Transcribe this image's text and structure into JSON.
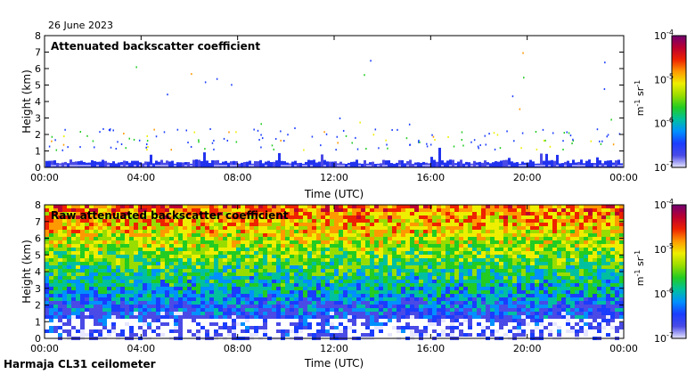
{
  "header": {
    "date": "26 June 2023"
  },
  "footer": {
    "instrument": "Harmaja CL31 ceilometer"
  },
  "colorbar_colors": [
    "#e6e6ff",
    "#4a4ae6",
    "#1a3cff",
    "#0090ff",
    "#00c0a0",
    "#22cc22",
    "#99dd00",
    "#eeee00",
    "#ff9900",
    "#ee2200",
    "#bb0030",
    "#700070"
  ],
  "chart_data": [
    {
      "type": "heatmap",
      "title": "Attenuated backscatter coefficient",
      "xlabel": "Time (UTC)",
      "ylabel": "Height (km)",
      "xticks": [
        "00:00",
        "04:00",
        "08:00",
        "12:00",
        "16:00",
        "20:00",
        "00:00"
      ],
      "yticks": [
        "0",
        "1",
        "2",
        "3",
        "4",
        "5",
        "6",
        "7",
        "8"
      ],
      "ylim": [
        0,
        8
      ],
      "colorbar": {
        "label": "m-1 sr-1",
        "ticks": [
          "10^-7",
          "10^-6",
          "10^-5",
          "10^-4"
        ],
        "range": [
          1e-07,
          0.0001
        ],
        "scale": "log"
      }
    },
    {
      "type": "heatmap",
      "title": "Raw attenuated backscatter coefficient",
      "xlabel": "Time (UTC)",
      "ylabel": "Height (km)",
      "xticks": [
        "00:00",
        "04:00",
        "08:00",
        "12:00",
        "16:00",
        "20:00",
        "00:00"
      ],
      "yticks": [
        "0",
        "1",
        "2",
        "3",
        "4",
        "5",
        "6",
        "7",
        "8"
      ],
      "ylim": [
        0,
        8
      ],
      "colorbar": {
        "label": "m-1 sr-1",
        "ticks": [
          "10^-7",
          "10^-6",
          "10^-5",
          "10^-4"
        ],
        "range": [
          1e-07,
          0.0001
        ],
        "scale": "log"
      }
    }
  ]
}
